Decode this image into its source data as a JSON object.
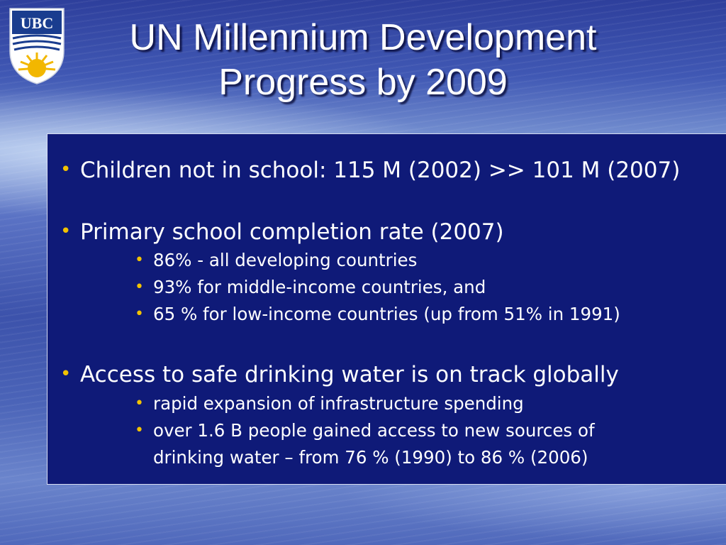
{
  "slide": {
    "title_lines": [
      "UN Millennium Development",
      "Progress by 2009"
    ],
    "logo_text": "UBC",
    "bullets": [
      {
        "text": "Children not in school: 115 M (2002) >> 101 M (2007)",
        "subs": []
      },
      {
        "text": "Primary school completion rate (2007)",
        "subs": [
          "86% - all developing countries",
          "93% for middle-income countries, and",
          "65 % for low-income countries (up from 51% in 1991)"
        ]
      },
      {
        "text": "Access to safe drinking water is on track globally",
        "subs": [
          "rapid expansion of infrastructure spending",
          "over 1.6 B people gained access to new sources of",
          "drinking water – from 76 % (1990) to 86 % (2006)"
        ]
      }
    ]
  },
  "colors": {
    "content_background": "#0f1a78",
    "bullet_marker": "#f2c200",
    "text": "#ffffff",
    "logo_blue": "#1a3d8f",
    "logo_gold": "#f2b700"
  }
}
